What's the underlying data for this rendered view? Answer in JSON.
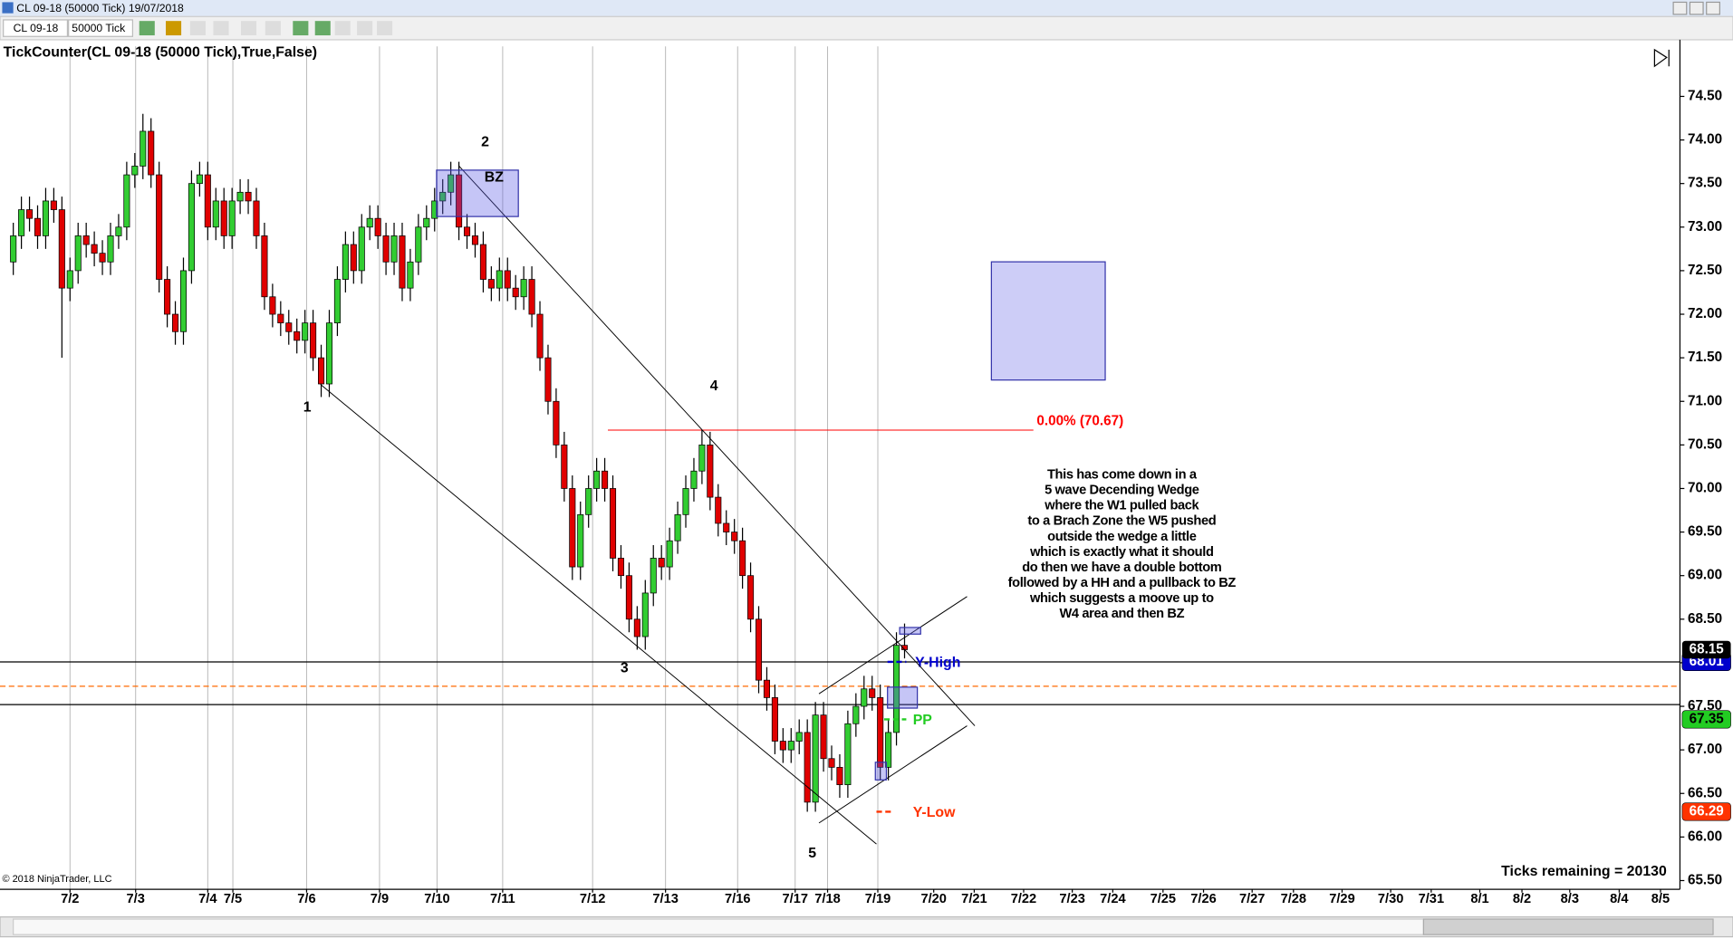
{
  "window": {
    "title": "CL 09-18 (50000 Tick)  19/07/2018",
    "instrument": "CL 09-18",
    "interval": "50000 Tick"
  },
  "chart_data": {
    "type": "candlestick",
    "title": "TickCounter(CL 09-18 (50000 Tick),True,False)",
    "up_color": "#32cd32",
    "down_color": "#e00000",
    "open": [
      72.6,
      72.9,
      73.2,
      73.1,
      72.9,
      73.3,
      73.2,
      72.3,
      72.5,
      72.9,
      72.8,
      72.7,
      72.6,
      72.9,
      73.0,
      73.6,
      73.7,
      74.1,
      73.6,
      72.4,
      72.0,
      71.8,
      72.5,
      73.5,
      73.6,
      73.0,
      73.3,
      72.9,
      73.3,
      73.4,
      73.3,
      72.9,
      72.2,
      72.0,
      71.9,
      71.8,
      71.7,
      71.9,
      71.5,
      71.2,
      71.9,
      72.4,
      72.8,
      72.5,
      73.0,
      73.1,
      72.9,
      72.6,
      72.9,
      72.3,
      72.6,
      73.0,
      73.1,
      73.3,
      73.4,
      73.6,
      73.0,
      72.9,
      72.8,
      72.4,
      72.3,
      72.5,
      72.3,
      72.2,
      72.4,
      72.0,
      71.5,
      71.0,
      70.5,
      70.0,
      69.1,
      69.7,
      70.0,
      70.2,
      70.0,
      69.2,
      69.0,
      68.5,
      68.3,
      68.8,
      69.2,
      69.1,
      69.4,
      69.7,
      70.0,
      70.2,
      70.5,
      69.9,
      69.6,
      69.5,
      69.4,
      69.0,
      68.5,
      67.8,
      67.6,
      67.1,
      67.0,
      67.1,
      67.2,
      66.4,
      67.4,
      66.9,
      66.8,
      66.6,
      67.3,
      67.5,
      67.7,
      67.6,
      66.8,
      67.2,
      68.2
    ],
    "high": [
      73.05,
      73.35,
      73.35,
      73.25,
      73.45,
      73.45,
      73.35,
      72.65,
      73.05,
      73.05,
      72.95,
      72.85,
      73.05,
      73.15,
      73.75,
      73.85,
      74.3,
      74.25,
      73.75,
      72.55,
      72.15,
      72.65,
      73.65,
      73.75,
      73.75,
      73.45,
      73.45,
      73.45,
      73.55,
      73.55,
      73.45,
      73.05,
      72.35,
      72.15,
      72.05,
      71.95,
      72.05,
      72.05,
      71.65,
      72.05,
      72.55,
      72.95,
      72.95,
      73.15,
      73.25,
      73.25,
      73.05,
      73.05,
      73.05,
      72.75,
      73.15,
      73.25,
      73.45,
      73.55,
      73.75,
      73.75,
      73.15,
      73.05,
      72.95,
      72.55,
      72.65,
      72.65,
      72.45,
      72.55,
      72.55,
      72.15,
      71.65,
      71.15,
      70.65,
      70.15,
      69.85,
      70.15,
      70.35,
      70.35,
      70.15,
      69.35,
      69.15,
      68.65,
      68.95,
      69.35,
      69.35,
      69.55,
      69.85,
      70.15,
      70.35,
      70.67,
      70.65,
      70.05,
      69.75,
      69.65,
      69.55,
      69.15,
      68.65,
      67.95,
      67.75,
      67.25,
      67.25,
      67.35,
      67.35,
      67.55,
      67.55,
      67.05,
      66.95,
      67.45,
      67.65,
      67.85,
      67.85,
      67.75,
      67.35,
      68.35,
      68.45
    ],
    "low": [
      72.45,
      72.75,
      72.95,
      72.75,
      72.75,
      73.05,
      71.5,
      72.15,
      72.35,
      72.65,
      72.55,
      72.45,
      72.45,
      72.75,
      72.85,
      73.45,
      73.55,
      73.45,
      72.25,
      71.85,
      71.65,
      71.65,
      72.35,
      73.35,
      72.85,
      72.85,
      72.75,
      72.75,
      73.15,
      73.15,
      72.75,
      72.05,
      71.85,
      71.75,
      71.65,
      71.55,
      71.55,
      71.35,
      71.05,
      71.05,
      71.75,
      72.25,
      72.35,
      72.35,
      72.85,
      72.75,
      72.45,
      72.45,
      72.15,
      72.15,
      72.45,
      72.85,
      72.95,
      73.15,
      73.25,
      72.85,
      72.75,
      72.65,
      72.25,
      72.15,
      72.15,
      72.15,
      72.05,
      72.05,
      71.85,
      71.35,
      70.85,
      70.35,
      69.85,
      68.95,
      68.95,
      69.55,
      69.85,
      69.85,
      69.05,
      68.85,
      68.35,
      68.15,
      68.15,
      68.65,
      68.95,
      68.95,
      69.25,
      69.55,
      69.85,
      70.05,
      69.75,
      69.45,
      69.35,
      69.25,
      68.85,
      68.35,
      67.65,
      67.45,
      66.95,
      66.85,
      66.85,
      66.95,
      66.29,
      66.29,
      66.75,
      66.65,
      66.45,
      66.45,
      67.15,
      67.35,
      67.45,
      66.65,
      66.65,
      67.05,
      68.05
    ],
    "close": [
      72.9,
      73.2,
      73.1,
      72.9,
      73.3,
      73.2,
      72.3,
      72.5,
      72.9,
      72.8,
      72.7,
      72.6,
      72.9,
      73.0,
      73.6,
      73.7,
      74.1,
      73.6,
      72.4,
      72.0,
      71.8,
      72.5,
      73.5,
      73.6,
      73.0,
      73.3,
      72.9,
      73.3,
      73.4,
      73.3,
      72.9,
      72.2,
      72.0,
      71.9,
      71.8,
      71.7,
      71.9,
      71.5,
      71.2,
      71.9,
      72.4,
      72.8,
      72.5,
      73.0,
      73.1,
      72.9,
      72.6,
      72.9,
      72.3,
      72.6,
      73.0,
      73.1,
      73.3,
      73.4,
      73.6,
      73.0,
      72.9,
      72.8,
      72.4,
      72.3,
      72.5,
      72.3,
      72.2,
      72.4,
      72.0,
      71.5,
      71.0,
      70.5,
      70.0,
      69.1,
      69.7,
      70.0,
      70.2,
      70.0,
      69.2,
      69.0,
      68.5,
      68.3,
      68.8,
      69.2,
      69.1,
      69.4,
      69.7,
      70.0,
      70.2,
      70.5,
      69.9,
      69.6,
      69.5,
      69.4,
      69.0,
      68.5,
      67.8,
      67.6,
      67.1,
      67.0,
      67.1,
      67.2,
      66.4,
      67.4,
      66.9,
      66.8,
      66.6,
      67.3,
      67.5,
      67.7,
      67.6,
      66.8,
      67.2,
      68.2,
      68.15
    ],
    "xlim": [
      -1.64,
      205.7
    ],
    "xticks": [
      {
        "value": 7.0,
        "label": "7/2"
      },
      {
        "value": 15.1,
        "label": "7/3"
      },
      {
        "value": 24.0,
        "label": "7/4"
      },
      {
        "value": 27.1,
        "label": "7/5"
      },
      {
        "value": 36.2,
        "label": "7/6"
      },
      {
        "value": 45.2,
        "label": "7/9"
      },
      {
        "value": 52.3,
        "label": "7/10"
      },
      {
        "value": 60.4,
        "label": "7/11"
      },
      {
        "value": 71.5,
        "label": "7/12"
      },
      {
        "value": 80.5,
        "label": "7/13"
      },
      {
        "value": 89.4,
        "label": "7/16"
      },
      {
        "value": 96.5,
        "label": "7/17"
      },
      {
        "value": 100.5,
        "label": "7/18"
      },
      {
        "value": 106.7,
        "label": "7/19"
      },
      {
        "value": 113.6,
        "label": "7/20"
      },
      {
        "value": 118.6,
        "label": "7/21"
      },
      {
        "value": 124.7,
        "label": "7/22"
      },
      {
        "value": 130.7,
        "label": "7/23"
      },
      {
        "value": 135.7,
        "label": "7/24"
      },
      {
        "value": 141.9,
        "label": "7/25"
      },
      {
        "value": 146.9,
        "label": "7/26"
      },
      {
        "value": 152.9,
        "label": "7/27"
      },
      {
        "value": 158.0,
        "label": "7/28"
      },
      {
        "value": 164.0,
        "label": "7/29"
      },
      {
        "value": 170.0,
        "label": "7/30"
      },
      {
        "value": 175.0,
        "label": "7/31"
      },
      {
        "value": 181.0,
        "label": "8/1"
      },
      {
        "value": 186.2,
        "label": "8/2"
      },
      {
        "value": 192.1,
        "label": "8/3"
      },
      {
        "value": 198.2,
        "label": "8/4"
      },
      {
        "value": 203.3,
        "label": "8/5"
      }
    ],
    "ylim": [
      65.4,
      75.15
    ],
    "yticks": [
      {
        "value": 65.5,
        "label": "65.50"
      },
      {
        "value": 66,
        "label": "66.00"
      },
      {
        "value": 66.5,
        "label": "66.50"
      },
      {
        "value": 67,
        "label": "67.00"
      },
      {
        "value": 67.5,
        "label": "67.50"
      },
      {
        "value": 68,
        "label": "68.00"
      },
      {
        "value": 68.5,
        "label": "68.50"
      },
      {
        "value": 69,
        "label": "69.00"
      },
      {
        "value": 69.5,
        "label": "69.50"
      },
      {
        "value": 70,
        "label": "70.00"
      },
      {
        "value": 70.5,
        "label": "70.50"
      },
      {
        "value": 71,
        "label": "71.00"
      },
      {
        "value": 71.5,
        "label": "71.50"
      },
      {
        "value": 72,
        "label": "72.00"
      },
      {
        "value": 72.5,
        "label": "72.50"
      },
      {
        "value": 73,
        "label": "73.00"
      },
      {
        "value": 73.5,
        "label": "73.50"
      },
      {
        "value": 74,
        "label": "74.00"
      },
      {
        "value": 74.5,
        "label": "74.50"
      }
    ],
    "levels": [
      {
        "name": "Y-High",
        "value": 68.01,
        "color": "#0000cc"
      },
      {
        "name": "PP",
        "value": 67.35,
        "color": "#22cc22"
      },
      {
        "name": "Y-Low",
        "value": 66.29,
        "color": "#ff3300"
      }
    ],
    "lines": [
      {
        "value": 68.01,
        "color": "#000000",
        "dash": false
      },
      {
        "value": 67.73,
        "color": "#ff6a00",
        "dash": true
      },
      {
        "value": 67.52,
        "color": "#000000",
        "dash": false
      }
    ],
    "fib": {
      "label": "0.00% (70.67)",
      "value": 70.67,
      "color": "#ff0000"
    },
    "waves": [
      "1",
      "2",
      "3",
      "4",
      "5"
    ],
    "zone_label": "BZ",
    "note": [
      "This has come down in a",
      "5 wave Decending Wedge",
      "where the W1 pulled back",
      "to a Brach Zone the W5 pushed",
      "outside the wedge a little",
      "which is exactly what it should",
      "do then we have a double bottom",
      "followed by a HH and a pullback to BZ",
      "which suggests a moove up to",
      "W4 area and then BZ"
    ],
    "ticks_remaining": "Ticks remaining = 20130"
  },
  "copyright": "© 2018 NinjaTrader, LLC"
}
